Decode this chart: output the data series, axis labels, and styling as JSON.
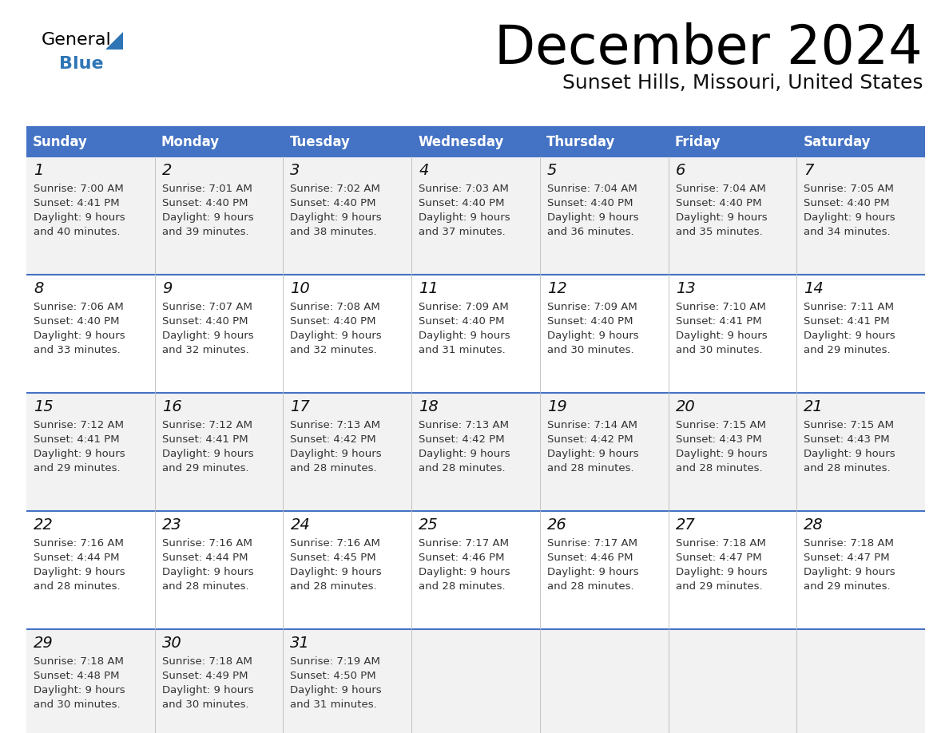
{
  "title": "December 2024",
  "subtitle": "Sunset Hills, Missouri, United States",
  "header_bg": "#4472C4",
  "header_text_color": "#FFFFFF",
  "row_bg_odd": "#FFFFFF",
  "row_bg_even": "#F2F2F2",
  "cell_border_color": "#4472C4",
  "day_names": [
    "Sunday",
    "Monday",
    "Tuesday",
    "Wednesday",
    "Thursday",
    "Friday",
    "Saturday"
  ],
  "days": [
    {
      "day": 1,
      "col": 0,
      "row": 0,
      "sunrise": "7:00 AM",
      "sunset": "4:41 PM",
      "daylight": "9 hours",
      "daylight2": "and 40 minutes."
    },
    {
      "day": 2,
      "col": 1,
      "row": 0,
      "sunrise": "7:01 AM",
      "sunset": "4:40 PM",
      "daylight": "9 hours",
      "daylight2": "and 39 minutes."
    },
    {
      "day": 3,
      "col": 2,
      "row": 0,
      "sunrise": "7:02 AM",
      "sunset": "4:40 PM",
      "daylight": "9 hours",
      "daylight2": "and 38 minutes."
    },
    {
      "day": 4,
      "col": 3,
      "row": 0,
      "sunrise": "7:03 AM",
      "sunset": "4:40 PM",
      "daylight": "9 hours",
      "daylight2": "and 37 minutes."
    },
    {
      "day": 5,
      "col": 4,
      "row": 0,
      "sunrise": "7:04 AM",
      "sunset": "4:40 PM",
      "daylight": "9 hours",
      "daylight2": "and 36 minutes."
    },
    {
      "day": 6,
      "col": 5,
      "row": 0,
      "sunrise": "7:04 AM",
      "sunset": "4:40 PM",
      "daylight": "9 hours",
      "daylight2": "and 35 minutes."
    },
    {
      "day": 7,
      "col": 6,
      "row": 0,
      "sunrise": "7:05 AM",
      "sunset": "4:40 PM",
      "daylight": "9 hours",
      "daylight2": "and 34 minutes."
    },
    {
      "day": 8,
      "col": 0,
      "row": 1,
      "sunrise": "7:06 AM",
      "sunset": "4:40 PM",
      "daylight": "9 hours",
      "daylight2": "and 33 minutes."
    },
    {
      "day": 9,
      "col": 1,
      "row": 1,
      "sunrise": "7:07 AM",
      "sunset": "4:40 PM",
      "daylight": "9 hours",
      "daylight2": "and 32 minutes."
    },
    {
      "day": 10,
      "col": 2,
      "row": 1,
      "sunrise": "7:08 AM",
      "sunset": "4:40 PM",
      "daylight": "9 hours",
      "daylight2": "and 32 minutes."
    },
    {
      "day": 11,
      "col": 3,
      "row": 1,
      "sunrise": "7:09 AM",
      "sunset": "4:40 PM",
      "daylight": "9 hours",
      "daylight2": "and 31 minutes."
    },
    {
      "day": 12,
      "col": 4,
      "row": 1,
      "sunrise": "7:09 AM",
      "sunset": "4:40 PM",
      "daylight": "9 hours",
      "daylight2": "and 30 minutes."
    },
    {
      "day": 13,
      "col": 5,
      "row": 1,
      "sunrise": "7:10 AM",
      "sunset": "4:41 PM",
      "daylight": "9 hours",
      "daylight2": "and 30 minutes."
    },
    {
      "day": 14,
      "col": 6,
      "row": 1,
      "sunrise": "7:11 AM",
      "sunset": "4:41 PM",
      "daylight": "9 hours",
      "daylight2": "and 29 minutes."
    },
    {
      "day": 15,
      "col": 0,
      "row": 2,
      "sunrise": "7:12 AM",
      "sunset": "4:41 PM",
      "daylight": "9 hours",
      "daylight2": "and 29 minutes."
    },
    {
      "day": 16,
      "col": 1,
      "row": 2,
      "sunrise": "7:12 AM",
      "sunset": "4:41 PM",
      "daylight": "9 hours",
      "daylight2": "and 29 minutes."
    },
    {
      "day": 17,
      "col": 2,
      "row": 2,
      "sunrise": "7:13 AM",
      "sunset": "4:42 PM",
      "daylight": "9 hours",
      "daylight2": "and 28 minutes."
    },
    {
      "day": 18,
      "col": 3,
      "row": 2,
      "sunrise": "7:13 AM",
      "sunset": "4:42 PM",
      "daylight": "9 hours",
      "daylight2": "and 28 minutes."
    },
    {
      "day": 19,
      "col": 4,
      "row": 2,
      "sunrise": "7:14 AM",
      "sunset": "4:42 PM",
      "daylight": "9 hours",
      "daylight2": "and 28 minutes."
    },
    {
      "day": 20,
      "col": 5,
      "row": 2,
      "sunrise": "7:15 AM",
      "sunset": "4:43 PM",
      "daylight": "9 hours",
      "daylight2": "and 28 minutes."
    },
    {
      "day": 21,
      "col": 6,
      "row": 2,
      "sunrise": "7:15 AM",
      "sunset": "4:43 PM",
      "daylight": "9 hours",
      "daylight2": "and 28 minutes."
    },
    {
      "day": 22,
      "col": 0,
      "row": 3,
      "sunrise": "7:16 AM",
      "sunset": "4:44 PM",
      "daylight": "9 hours",
      "daylight2": "and 28 minutes."
    },
    {
      "day": 23,
      "col": 1,
      "row": 3,
      "sunrise": "7:16 AM",
      "sunset": "4:44 PM",
      "daylight": "9 hours",
      "daylight2": "and 28 minutes."
    },
    {
      "day": 24,
      "col": 2,
      "row": 3,
      "sunrise": "7:16 AM",
      "sunset": "4:45 PM",
      "daylight": "9 hours",
      "daylight2": "and 28 minutes."
    },
    {
      "day": 25,
      "col": 3,
      "row": 3,
      "sunrise": "7:17 AM",
      "sunset": "4:46 PM",
      "daylight": "9 hours",
      "daylight2": "and 28 minutes."
    },
    {
      "day": 26,
      "col": 4,
      "row": 3,
      "sunrise": "7:17 AM",
      "sunset": "4:46 PM",
      "daylight": "9 hours",
      "daylight2": "and 28 minutes."
    },
    {
      "day": 27,
      "col": 5,
      "row": 3,
      "sunrise": "7:18 AM",
      "sunset": "4:47 PM",
      "daylight": "9 hours",
      "daylight2": "and 29 minutes."
    },
    {
      "day": 28,
      "col": 6,
      "row": 3,
      "sunrise": "7:18 AM",
      "sunset": "4:47 PM",
      "daylight": "9 hours",
      "daylight2": "and 29 minutes."
    },
    {
      "day": 29,
      "col": 0,
      "row": 4,
      "sunrise": "7:18 AM",
      "sunset": "4:48 PM",
      "daylight": "9 hours",
      "daylight2": "and 30 minutes."
    },
    {
      "day": 30,
      "col": 1,
      "row": 4,
      "sunrise": "7:18 AM",
      "sunset": "4:49 PM",
      "daylight": "9 hours",
      "daylight2": "and 30 minutes."
    },
    {
      "day": 31,
      "col": 2,
      "row": 4,
      "sunrise": "7:19 AM",
      "sunset": "4:50 PM",
      "daylight": "9 hours",
      "daylight2": "and 31 minutes."
    }
  ],
  "num_rows": 5,
  "logo_triangle_color": "#2E75B6"
}
